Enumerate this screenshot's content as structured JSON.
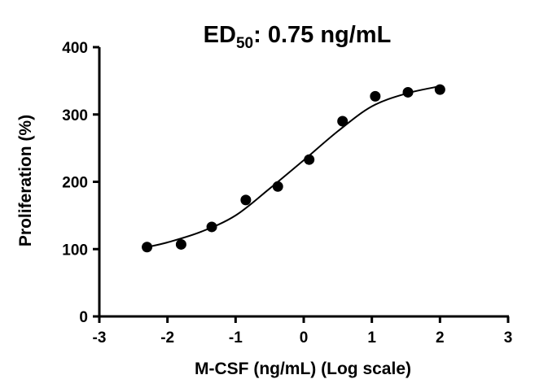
{
  "chart_data": {
    "type": "scatter",
    "title_prefix": "ED",
    "title_subscript": "50",
    "title_suffix": ": 0.75 ng/mL",
    "xlabel": "M-CSF (ng/mL) (Log scale)",
    "ylabel": "Proliferation (%)",
    "xlim": [
      -3,
      3
    ],
    "ylim": [
      0,
      400
    ],
    "x_ticks": [
      -3,
      -2,
      -1,
      0,
      1,
      2,
      3
    ],
    "x_tick_labels": [
      "-3",
      "-2",
      "-1",
      "0",
      "1",
      "2",
      "3"
    ],
    "y_ticks": [
      0,
      100,
      200,
      300,
      400
    ],
    "y_tick_labels": [
      "0",
      "100",
      "200",
      "300",
      "400"
    ],
    "grid": false,
    "series": [
      {
        "x": [
          -2.3,
          -1.8,
          -1.35,
          -0.85,
          -0.38,
          0.08,
          0.57,
          1.05,
          1.53,
          2.0
        ],
        "y": [
          103,
          107,
          133,
          173,
          193,
          233,
          290,
          327,
          333,
          337
        ],
        "color": "#000000",
        "marker": "circle"
      }
    ],
    "fit_curve": {
      "x": [
        -2.3,
        -2.0,
        -1.5,
        -1.0,
        -0.5,
        0.0,
        0.5,
        1.0,
        1.5,
        2.0
      ],
      "y": [
        103,
        110,
        126,
        150,
        190,
        232,
        275,
        312,
        331,
        342
      ],
      "color": "#000000"
    }
  }
}
